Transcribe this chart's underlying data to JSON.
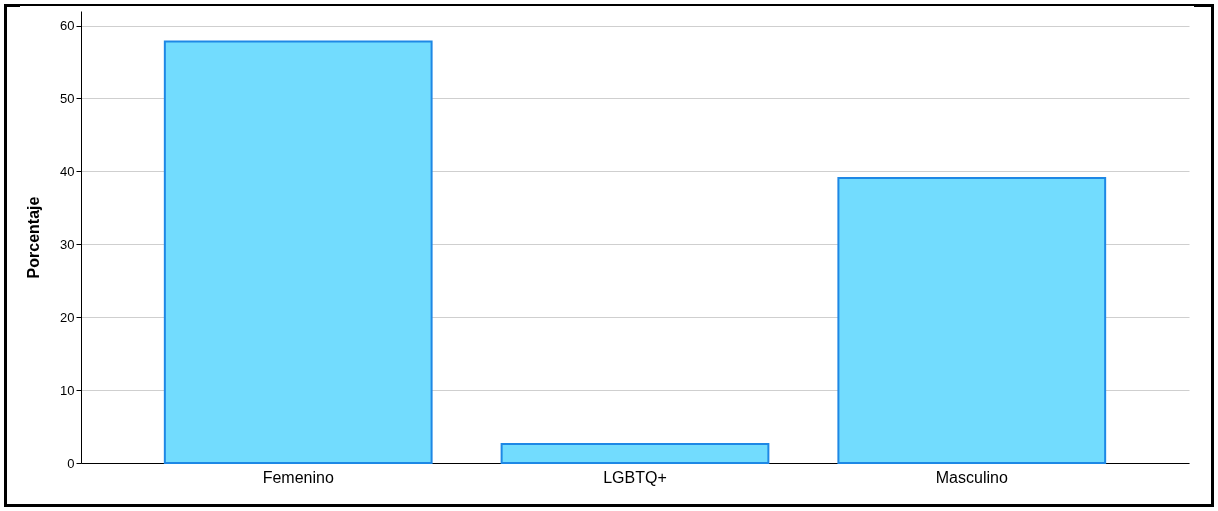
{
  "chart_data": {
    "type": "bar",
    "ylabel": "Porcentaje",
    "categories": [
      "Femenino",
      "LGBTQ+",
      "Masculino"
    ],
    "values": [
      57.8,
      2.6,
      39.1
    ],
    "color": "#72dcfe",
    "ylim": [
      0,
      62
    ],
    "yticks": [
      0,
      10,
      20,
      30,
      40,
      50,
      60
    ],
    "grid": "y"
  }
}
